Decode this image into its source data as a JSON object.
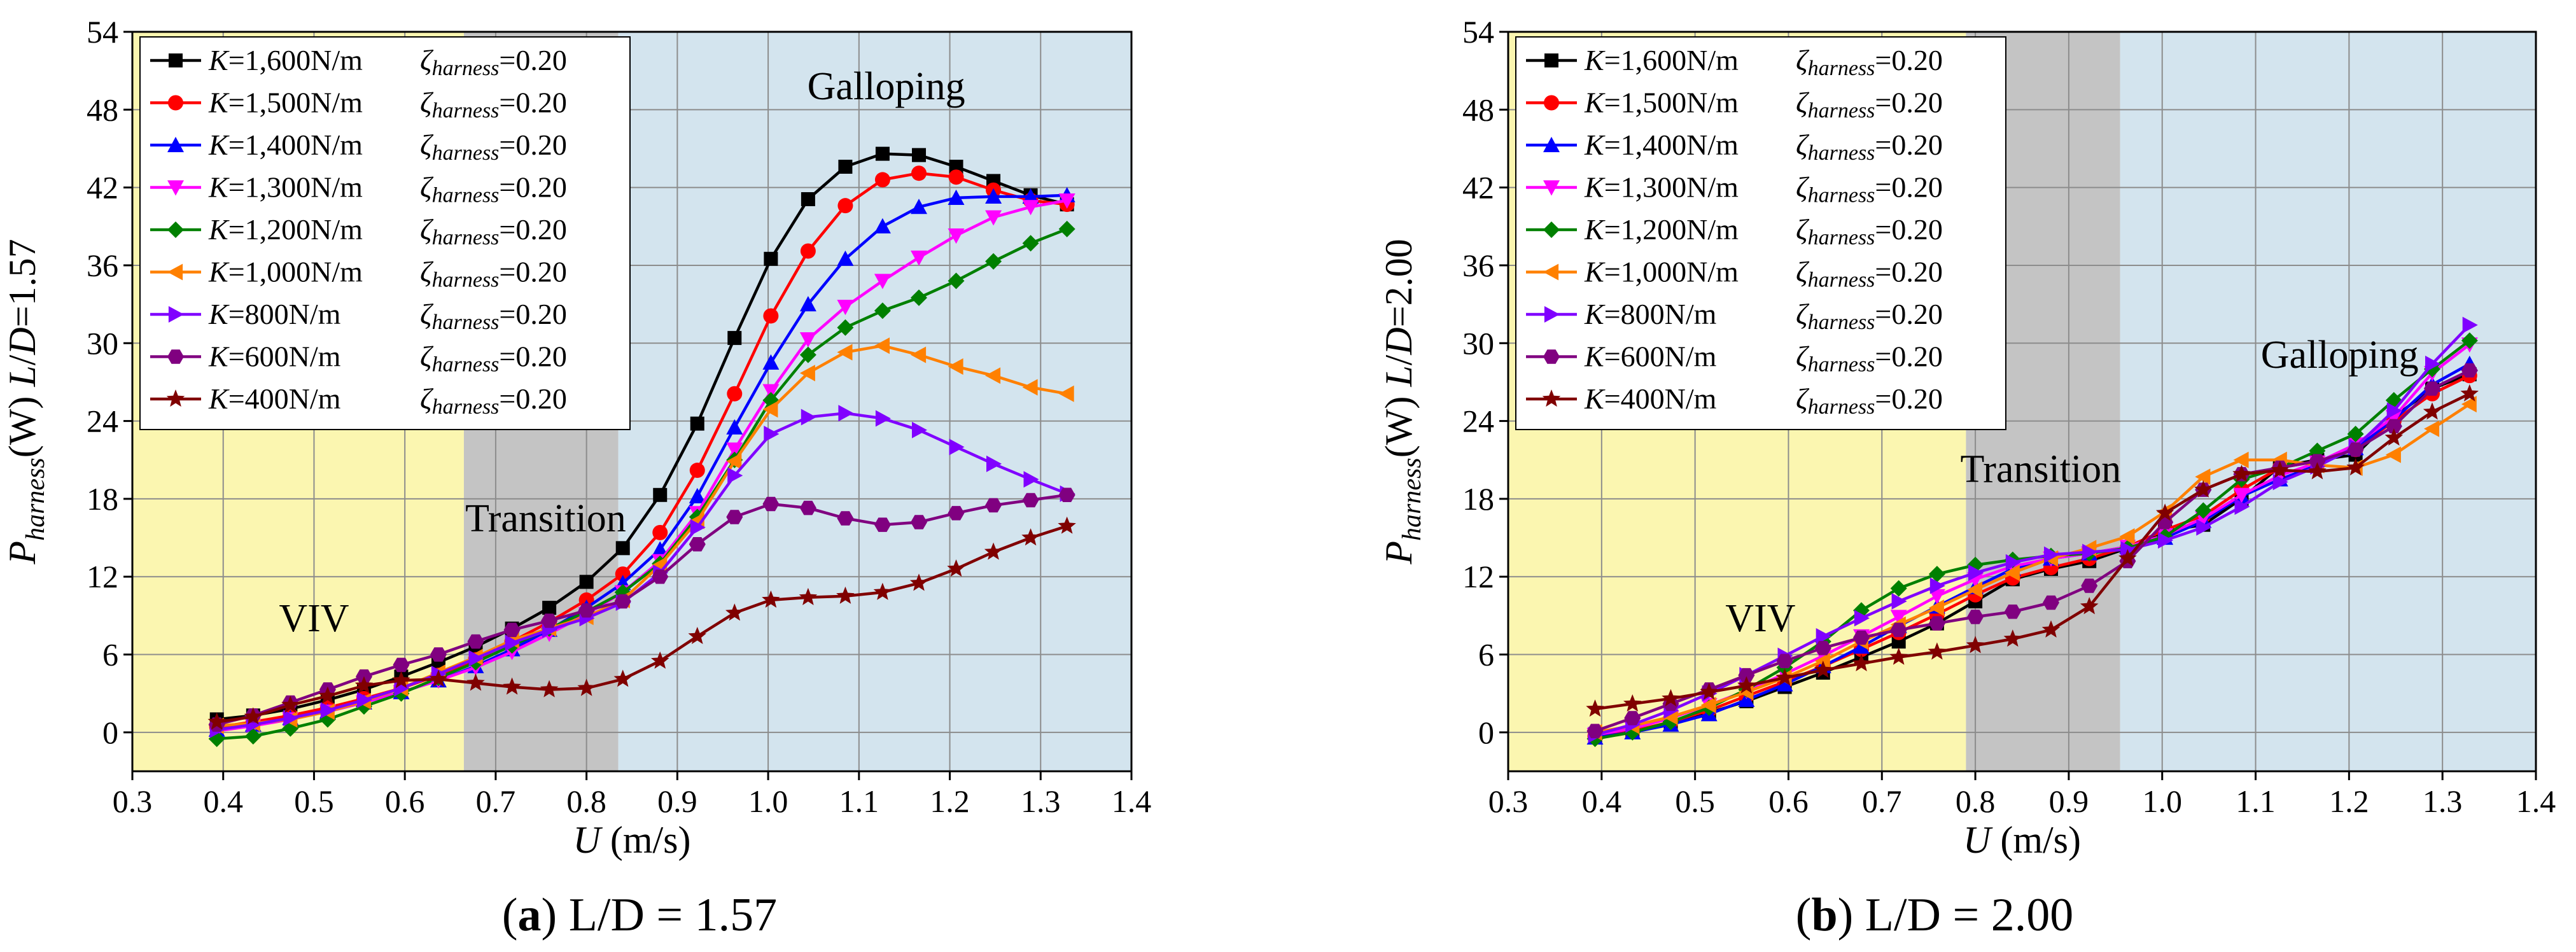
{
  "figure": {
    "caption_a": {
      "letter": "a",
      "text": "L/D = 1.57"
    },
    "caption_b": {
      "letter": "b",
      "text": "L/D = 2.00"
    }
  },
  "chart_data": [
    {
      "type": "line",
      "id": "a",
      "title": "",
      "xlabel": "U (m/s)",
      "ylabel": "P_harness(W)  L/D=1.57",
      "ylabel_text": "P",
      "ylabel_sub": "harness",
      "ylabel_unit": "(W)",
      "ylabel_ratio": "L/D=1.57",
      "xlim": [
        0.3,
        1.4
      ],
      "ylim": [
        -3,
        54
      ],
      "xticks": [
        "0.3",
        "0.4",
        "0.5",
        "0.6",
        "0.7",
        "0.8",
        "0.9",
        "1.0",
        "1.1",
        "1.2",
        "1.3",
        "1.4"
      ],
      "yticks": [
        "0",
        "6",
        "12",
        "18",
        "24",
        "30",
        "36",
        "42",
        "48",
        "54"
      ],
      "grid": true,
      "legend_position": "top-left",
      "regions": [
        {
          "name": "VIV",
          "x0": 0.3,
          "x1": 0.665,
          "color": "#fbf6b0"
        },
        {
          "name": "Transition",
          "x0": 0.665,
          "x1": 0.835,
          "color": "#c4c4c4"
        },
        {
          "name": "Galloping",
          "x0": 0.835,
          "x1": 1.4,
          "color": "#d3e4ee"
        }
      ],
      "region_labels": [
        {
          "text": "VIV",
          "x": 0.5,
          "y": 7.8
        },
        {
          "text": "Transition",
          "x": 0.755,
          "y": 15.5
        },
        {
          "text": "Galloping",
          "x": 1.13,
          "y": 48.8
        }
      ],
      "x": [
        0.393,
        0.433,
        0.474,
        0.515,
        0.555,
        0.596,
        0.637,
        0.678,
        0.718,
        0.759,
        0.8,
        0.84,
        0.881,
        0.922,
        0.963,
        1.003,
        1.044,
        1.085,
        1.126,
        1.166,
        1.207,
        1.248,
        1.289,
        1.329
      ],
      "series": [
        {
          "name": "K=1,600N/m",
          "k": "K",
          "kval": "=1,600N/m",
          "zeta": "ζ",
          "zsub": "harness",
          "zval": "=0.20",
          "color": "#000000",
          "marker": "square",
          "values": [
            1.0,
            1.3,
            1.8,
            2.5,
            3.3,
            4.3,
            5.4,
            6.6,
            8.0,
            9.6,
            11.6,
            14.2,
            18.3,
            23.8,
            30.4,
            36.5,
            41.1,
            43.6,
            44.6,
            44.5,
            43.6,
            42.5,
            41.4,
            40.7
          ]
        },
        {
          "name": "K=1,500N/m",
          "k": "K",
          "kval": "=1,500N/m",
          "zeta": "ζ",
          "zsub": "harness",
          "zval": "=0.20",
          "color": "#ff0000",
          "marker": "circle",
          "values": [
            0.4,
            0.8,
            1.3,
            1.9,
            2.6,
            3.4,
            4.4,
            5.6,
            7.0,
            8.5,
            10.2,
            12.2,
            15.4,
            20.2,
            26.1,
            32.1,
            37.1,
            40.6,
            42.6,
            43.1,
            42.8,
            41.8,
            41.0,
            40.7
          ]
        },
        {
          "name": "K=1,400N/m",
          "k": "K",
          "kval": "=1,400N/m",
          "zeta": "ζ",
          "zsub": "harness",
          "zval": "=0.20",
          "color": "#0000ff",
          "marker": "triangle-up",
          "values": [
            0.2,
            0.6,
            1.1,
            1.6,
            2.3,
            3.1,
            4.0,
            5.1,
            6.4,
            7.9,
            9.6,
            11.5,
            14.1,
            18.2,
            23.5,
            28.5,
            33.0,
            36.5,
            39.0,
            40.5,
            41.2,
            41.3,
            41.3,
            41.4
          ]
        },
        {
          "name": "K=1,300N/m",
          "k": "K",
          "kval": "=1,300N/m",
          "zeta": "ζ",
          "zsub": "harness",
          "zval": "=0.20",
          "color": "#ff00ff",
          "marker": "triangle-down",
          "values": [
            0.1,
            0.5,
            1.0,
            1.6,
            2.3,
            3.1,
            4.0,
            5.0,
            6.2,
            7.6,
            9.1,
            10.8,
            13.2,
            16.9,
            21.8,
            26.3,
            30.3,
            32.8,
            34.8,
            36.6,
            38.3,
            39.7,
            40.5,
            41.0
          ]
        },
        {
          "name": "K=1,200N/m",
          "k": "K",
          "kval": "=1,200N/m",
          "zeta": "ζ",
          "zsub": "harness",
          "zval": "=0.20",
          "color": "#008000",
          "marker": "diamond",
          "values": [
            -0.5,
            -0.3,
            0.3,
            1.0,
            2.0,
            3.0,
            4.2,
            5.4,
            6.7,
            8.0,
            9.3,
            10.8,
            13.0,
            16.6,
            21.0,
            25.6,
            29.1,
            31.2,
            32.5,
            33.5,
            34.8,
            36.3,
            37.7,
            38.8
          ]
        },
        {
          "name": "K=1,000N/m",
          "k": "K",
          "kval": "=1,000N/m",
          "zeta": "ζ",
          "zsub": "harness",
          "zval": "=0.20",
          "color": "#ff8000",
          "marker": "triangle-left",
          "values": [
            0.5,
            0.7,
            1.0,
            1.6,
            2.4,
            3.4,
            4.6,
            5.8,
            7.1,
            8.0,
            8.9,
            10.2,
            12.9,
            16.3,
            20.9,
            24.9,
            27.7,
            29.3,
            29.8,
            29.1,
            28.2,
            27.5,
            26.6,
            26.1
          ]
        },
        {
          "name": "K=800N/m",
          "k": "K",
          "kval": "=800N/m",
          "zeta": "ζ",
          "zsub": "harness",
          "zval": "=0.20",
          "color": "#8000ff",
          "marker": "triangle-right",
          "values": [
            0.2,
            0.6,
            1.1,
            1.7,
            2.5,
            3.4,
            4.5,
            5.7,
            6.9,
            7.9,
            8.8,
            10.0,
            12.3,
            15.8,
            19.8,
            23.0,
            24.3,
            24.6,
            24.2,
            23.3,
            22.0,
            20.7,
            19.5,
            18.4
          ]
        },
        {
          "name": "K=600N/m",
          "k": "K",
          "kval": "=600N/m",
          "zeta": "ζ",
          "zsub": "harness",
          "zval": "=0.20",
          "color": "#800080",
          "marker": "hexagon",
          "values": [
            0.6,
            1.3,
            2.3,
            3.3,
            4.3,
            5.2,
            6.0,
            7.0,
            7.9,
            8.6,
            9.4,
            10.1,
            12.0,
            14.5,
            16.6,
            17.6,
            17.3,
            16.5,
            16.0,
            16.2,
            16.9,
            17.5,
            17.9,
            18.3
          ]
        },
        {
          "name": "K=400N/m",
          "k": "K",
          "kval": "=400N/m",
          "zeta": "ζ",
          "zsub": "harness",
          "zval": "=0.20",
          "color": "#800000",
          "marker": "star",
          "values": [
            0.8,
            1.2,
            2.1,
            2.8,
            3.6,
            4.0,
            4.1,
            3.8,
            3.5,
            3.3,
            3.4,
            4.1,
            5.5,
            7.4,
            9.2,
            10.2,
            10.4,
            10.5,
            10.8,
            11.5,
            12.6,
            13.9,
            15.0,
            15.9
          ]
        }
      ]
    },
    {
      "type": "line",
      "id": "b",
      "title": "",
      "xlabel": "U (m/s)",
      "ylabel": "P_harness(W)  L/D=2.00",
      "ylabel_text": "P",
      "ylabel_sub": "harness",
      "ylabel_unit": "(W)",
      "ylabel_ratio": "L/D=2.00",
      "xlim": [
        0.3,
        1.4
      ],
      "ylim": [
        -3,
        54
      ],
      "xticks": [
        "0.3",
        "0.4",
        "0.5",
        "0.6",
        "0.7",
        "0.8",
        "0.9",
        "1.0",
        "1.1",
        "1.2",
        "1.3",
        "1.4"
      ],
      "yticks": [
        "0",
        "6",
        "12",
        "18",
        "24",
        "30",
        "36",
        "42",
        "48",
        "54"
      ],
      "grid": true,
      "legend_position": "top-left",
      "regions": [
        {
          "name": "VIV",
          "x0": 0.3,
          "x1": 0.79,
          "color": "#fbf6b0"
        },
        {
          "name": "Transition",
          "x0": 0.79,
          "x1": 0.955,
          "color": "#c4c4c4"
        },
        {
          "name": "Galloping",
          "x0": 0.955,
          "x1": 1.4,
          "color": "#d3e4ee"
        }
      ],
      "region_labels": [
        {
          "text": "VIV",
          "x": 0.57,
          "y": 7.8
        },
        {
          "text": "Transition",
          "x": 0.87,
          "y": 19.3
        },
        {
          "text": "Galloping",
          "x": 1.19,
          "y": 28.1
        }
      ],
      "x": [
        0.393,
        0.433,
        0.474,
        0.515,
        0.555,
        0.596,
        0.637,
        0.678,
        0.718,
        0.759,
        0.8,
        0.84,
        0.881,
        0.922,
        0.963,
        1.003,
        1.044,
        1.085,
        1.126,
        1.166,
        1.207,
        1.248,
        1.289,
        1.329
      ],
      "series": [
        {
          "name": "K=1,600N/m",
          "k": "K",
          "kval": "=1,600N/m",
          "zeta": "ζ",
          "zsub": "harness",
          "zval": "=0.20",
          "color": "#000000",
          "marker": "square",
          "values": [
            -0.2,
            0.1,
            0.7,
            1.5,
            2.4,
            3.5,
            4.6,
            5.8,
            7.0,
            8.4,
            10.1,
            11.8,
            12.6,
            13.2,
            14.2,
            15.5,
            16.0,
            18.0,
            20.5,
            21.0,
            21.4,
            24.3,
            26.5,
            27.6
          ]
        },
        {
          "name": "K=1,500N/m",
          "k": "K",
          "kval": "=1,500N/m",
          "zeta": "ζ",
          "zsub": "harness",
          "zval": "=0.20",
          "color": "#ff0000",
          "marker": "circle",
          "values": [
            -0.3,
            0.1,
            0.8,
            1.7,
            2.8,
            3.9,
            5.1,
            6.4,
            7.7,
            9.1,
            10.6,
            11.9,
            12.7,
            13.4,
            14.3,
            15.6,
            16.7,
            18.7,
            20.4,
            20.9,
            21.8,
            24.0,
            26.1,
            27.5
          ]
        },
        {
          "name": "K=1,400N/m",
          "k": "K",
          "kval": "=1,400N/m",
          "zeta": "ζ",
          "zsub": "harness",
          "zval": "=0.20",
          "color": "#0000ff",
          "marker": "triangle-up",
          "values": [
            -0.4,
            0.0,
            0.6,
            1.4,
            2.5,
            3.7,
            5.1,
            6.6,
            8.2,
            9.7,
            11.2,
            12.6,
            13.4,
            13.8,
            14.3,
            15.0,
            16.3,
            18.2,
            19.5,
            20.6,
            21.9,
            24.1,
            26.8,
            28.4
          ]
        },
        {
          "name": "K=1,300N/m",
          "k": "K",
          "kval": "=1,300N/m",
          "zeta": "ζ",
          "zsub": "harness",
          "zval": "=0.20",
          "color": "#ff00ff",
          "marker": "triangle-down",
          "values": [
            -0.2,
            0.3,
            1.1,
            2.1,
            3.2,
            4.5,
            5.9,
            7.4,
            8.9,
            10.5,
            11.8,
            12.8,
            13.4,
            13.8,
            14.3,
            15.2,
            16.5,
            18.3,
            19.8,
            20.8,
            22.2,
            24.3,
            27.7,
            29.9
          ]
        },
        {
          "name": "K=1,200N/m",
          "k": "K",
          "kval": "=1,200N/m",
          "zeta": "ζ",
          "zsub": "harness",
          "zval": "=0.20",
          "color": "#008000",
          "marker": "diamond",
          "values": [
            -0.5,
            0.0,
            0.8,
            1.9,
            3.3,
            5.0,
            7.0,
            9.4,
            11.1,
            12.2,
            12.9,
            13.3,
            13.6,
            13.8,
            14.2,
            15.1,
            17.1,
            19.5,
            20.4,
            21.7,
            23.0,
            25.6,
            28.0,
            30.2
          ]
        },
        {
          "name": "K=1,000N/m",
          "k": "K",
          "kval": "=1,000N/m",
          "zeta": "ζ",
          "zsub": "harness",
          "zval": "=0.20",
          "color": "#ff8000",
          "marker": "triangle-left",
          "values": [
            0.0,
            0.5,
            1.2,
            2.1,
            3.1,
            4.2,
            5.5,
            7.0,
            8.3,
            9.6,
            11.0,
            12.3,
            13.4,
            14.2,
            15.1,
            17.0,
            19.7,
            21.0,
            21.0,
            20.6,
            20.4,
            21.4,
            23.4,
            25.3
          ]
        },
        {
          "name": "K=800N/m",
          "k": "K",
          "kval": "=800N/m",
          "zeta": "ζ",
          "zsub": "harness",
          "zval": "=0.20",
          "color": "#8000ff",
          "marker": "triangle-right",
          "values": [
            -0.2,
            0.6,
            1.7,
            3.0,
            4.4,
            5.9,
            7.4,
            8.8,
            10.1,
            11.3,
            12.3,
            13.1,
            13.7,
            13.9,
            14.1,
            14.8,
            15.8,
            17.4,
            19.3,
            20.5,
            22.0,
            24.8,
            28.4,
            31.4
          ]
        },
        {
          "name": "K=600N/m",
          "k": "K",
          "kval": "=600N/m",
          "zeta": "ζ",
          "zsub": "harness",
          "zval": "=0.20",
          "color": "#800080",
          "marker": "hexagon",
          "values": [
            0.1,
            1.1,
            2.2,
            3.3,
            4.4,
            5.5,
            6.5,
            7.3,
            7.9,
            8.4,
            8.9,
            9.3,
            10.0,
            11.3,
            13.2,
            16.2,
            18.7,
            19.9,
            20.4,
            20.9,
            21.8,
            23.6,
            26.5,
            27.9
          ]
        },
        {
          "name": "K=400N/m",
          "k": "K",
          "kval": "=400N/m",
          "zeta": "ζ",
          "zsub": "harness",
          "zval": "=0.20",
          "color": "#800000",
          "marker": "star",
          "values": [
            1.8,
            2.2,
            2.6,
            3.1,
            3.6,
            4.2,
            4.8,
            5.3,
            5.8,
            6.2,
            6.7,
            7.2,
            7.9,
            9.7,
            13.4,
            16.9,
            18.7,
            19.9,
            20.2,
            20.1,
            20.4,
            22.7,
            24.7,
            26.1
          ]
        }
      ]
    }
  ]
}
